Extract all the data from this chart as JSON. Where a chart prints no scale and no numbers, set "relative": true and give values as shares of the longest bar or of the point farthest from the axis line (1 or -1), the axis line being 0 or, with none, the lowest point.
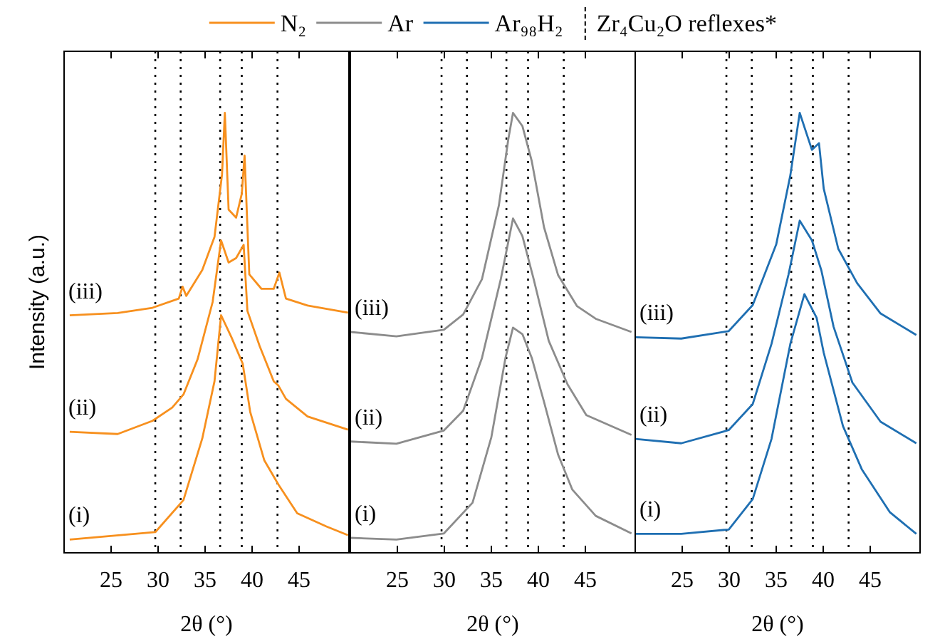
{
  "chart_data": [
    {
      "type": "line",
      "relative": true,
      "xlabel": "2θ (°)",
      "ylabel": "Intensity (a.u.)",
      "legend_title": "N₂",
      "annotations": [
        "Zr₄Cu₂O reflexes*"
      ],
      "xlim": [
        20,
        50.3
      ],
      "xticks": [
        25,
        30,
        35,
        40,
        45
      ],
      "tick_labels": "x",
      "ref_lines": [
        {
          "axis": "x",
          "value": 29.7,
          "line_style": "dotted",
          "color": "#000000"
        },
        {
          "axis": "x",
          "value": 32.4,
          "line_style": "dotted",
          "color": "#000000"
        },
        {
          "axis": "x",
          "value": 36.6,
          "line_style": "dotted",
          "color": "#000000"
        },
        {
          "axis": "x",
          "value": 38.9,
          "line_style": "dotted",
          "color": "#000000"
        },
        {
          "axis": "x",
          "value": 42.7,
          "line_style": "dotted",
          "color": "#000000"
        }
      ],
      "series": [
        {
          "name": "(i)",
          "color": "#f7901e",
          "x": [
            20.6,
            29.7,
            32.7,
            34.7,
            36.0,
            36.7,
            37.8,
            39.0,
            39.8,
            41.3,
            42.8,
            44.8,
            47.9,
            50.2
          ],
          "values": [
            0.03,
            0.047,
            0.12,
            0.26,
            0.39,
            0.54,
            0.49,
            0.43,
            0.32,
            0.21,
            0.155,
            0.09,
            0.06,
            0.04
          ]
        },
        {
          "name": "(ii)",
          "color": "#f7901e",
          "x": [
            20.6,
            25.7,
            29.4,
            31.5,
            32.7,
            34.2,
            35.8,
            36.7,
            37.5,
            38.3,
            39.1,
            39.5,
            40.8,
            42.3,
            42.8,
            43.6,
            45.9,
            50.2
          ],
          "values": [
            0.275,
            0.27,
            0.3,
            0.33,
            0.36,
            0.44,
            0.57,
            0.71,
            0.66,
            0.67,
            0.7,
            0.55,
            0.47,
            0.39,
            0.38,
            0.35,
            0.31,
            0.28
          ]
        },
        {
          "name": "(iii)",
          "color": "#f7901e",
          "x": [
            20.6,
            25.7,
            29.4,
            32.2,
            32.6,
            33.0,
            34.7,
            36.0,
            36.8,
            37.1,
            37.5,
            38.3,
            38.9,
            39.2,
            39.7,
            41.0,
            42.3,
            42.9,
            43.6,
            45.9,
            50.2
          ],
          "values": [
            0.54,
            0.545,
            0.557,
            0.578,
            0.605,
            0.584,
            0.643,
            0.718,
            0.86,
            1,
            0.78,
            0.762,
            0.816,
            0.903,
            0.633,
            0.6,
            0.6,
            0.637,
            0.578,
            0.562,
            0.546
          ]
        }
      ]
    },
    {
      "type": "line",
      "relative": true,
      "xlabel": "2θ (°)",
      "legend_title": "Ar",
      "xlim": [
        20,
        50.3
      ],
      "xticks": [
        25,
        30,
        35,
        40,
        45
      ],
      "tick_labels": "x",
      "ref_lines": [
        {
          "axis": "x",
          "value": 29.7,
          "line_style": "dotted",
          "color": "#000000"
        },
        {
          "axis": "x",
          "value": 32.4,
          "line_style": "dotted",
          "color": "#000000"
        },
        {
          "axis": "x",
          "value": 36.6,
          "line_style": "dotted",
          "color": "#000000"
        },
        {
          "axis": "x",
          "value": 38.9,
          "line_style": "dotted",
          "color": "#000000"
        },
        {
          "axis": "x",
          "value": 42.7,
          "line_style": "dotted",
          "color": "#000000"
        }
      ],
      "series": [
        {
          "name": "(i)",
          "color": "#8c8c8c",
          "x": [
            20,
            24.9,
            29.95,
            33.0,
            35.0,
            36.5,
            37.3,
            38.3,
            39.3,
            40.6,
            42.1,
            43.6,
            46.1,
            49.9
          ],
          "values": [
            0.034,
            0.03,
            0.044,
            0.114,
            0.263,
            0.443,
            0.512,
            0.497,
            0.443,
            0.343,
            0.223,
            0.144,
            0.084,
            0.044
          ]
        },
        {
          "name": "(ii)",
          "color": "#8c8c8c",
          "x": [
            20,
            24.9,
            29.95,
            32.0,
            34.0,
            36.0,
            37.3,
            38.3,
            39.5,
            41.1,
            43.1,
            45.1,
            49.9
          ],
          "values": [
            0.253,
            0.248,
            0.278,
            0.323,
            0.443,
            0.622,
            0.76,
            0.72,
            0.622,
            0.482,
            0.383,
            0.313,
            0.268
          ]
        },
        {
          "name": "(iii)",
          "color": "#8c8c8c",
          "x": [
            20,
            24.9,
            29.95,
            32.0,
            34.0,
            35.8,
            36.8,
            37.3,
            38.3,
            39.3,
            40.6,
            42.1,
            44.1,
            46.1,
            49.9
          ],
          "values": [
            0.502,
            0.492,
            0.507,
            0.542,
            0.622,
            0.79,
            0.94,
            1,
            0.97,
            0.89,
            0.74,
            0.631,
            0.561,
            0.532,
            0.502
          ]
        }
      ]
    },
    {
      "type": "line",
      "relative": true,
      "xlabel": "2θ (°)",
      "legend_title": "Ar₉₈H₂",
      "xlim": [
        20,
        50.3
      ],
      "xticks": [
        25,
        30,
        35,
        40,
        45
      ],
      "tick_labels": "x",
      "ref_lines": [
        {
          "axis": "x",
          "value": 29.7,
          "line_style": "dotted",
          "color": "#000000"
        },
        {
          "axis": "x",
          "value": 32.4,
          "line_style": "dotted",
          "color": "#000000"
        },
        {
          "axis": "x",
          "value": 36.6,
          "line_style": "dotted",
          "color": "#000000"
        },
        {
          "axis": "x",
          "value": 38.9,
          "line_style": "dotted",
          "color": "#000000"
        },
        {
          "axis": "x",
          "value": 42.7,
          "line_style": "dotted",
          "color": "#000000"
        }
      ],
      "series": [
        {
          "name": "(i)",
          "color": "#1f6fb2",
          "x": [
            20,
            24.9,
            29.95,
            32.5,
            34.5,
            36.5,
            38.0,
            39.3,
            40.05,
            42.1,
            44.1,
            47.1,
            49.9
          ],
          "values": [
            0.043,
            0.043,
            0.053,
            0.122,
            0.259,
            0.475,
            0.588,
            0.534,
            0.455,
            0.288,
            0.19,
            0.092,
            0.043
          ]
        },
        {
          "name": "(ii)",
          "color": "#1f6fb2",
          "x": [
            20,
            24.9,
            29.95,
            32.5,
            34.5,
            36.3,
            37.5,
            38.8,
            39.8,
            41.1,
            43.1,
            46.1,
            49.9
          ],
          "values": [
            0.259,
            0.249,
            0.279,
            0.338,
            0.475,
            0.632,
            0.755,
            0.71,
            0.642,
            0.514,
            0.387,
            0.298,
            0.249
          ]
        },
        {
          "name": "(iii)",
          "color": "#1f6fb2",
          "x": [
            20,
            24.9,
            29.95,
            32.5,
            35.0,
            36.5,
            37.5,
            38.8,
            39.55,
            40.05,
            41.6,
            43.6,
            46.1,
            49.9
          ],
          "values": [
            0.49,
            0.487,
            0.504,
            0.563,
            0.701,
            0.858,
            1,
            0.916,
            0.931,
            0.828,
            0.691,
            0.613,
            0.544,
            0.495
          ]
        }
      ]
    }
  ]
}
